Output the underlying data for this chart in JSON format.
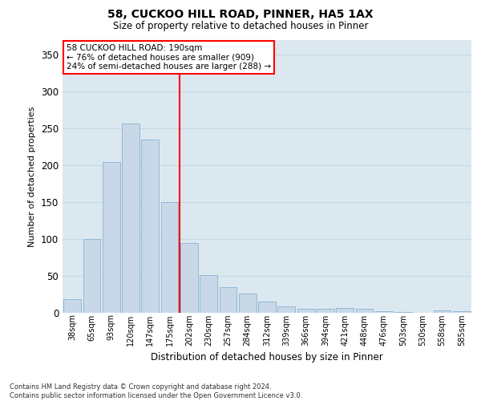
{
  "title1": "58, CUCKOO HILL ROAD, PINNER, HA5 1AX",
  "title2": "Size of property relative to detached houses in Pinner",
  "xlabel": "Distribution of detached houses by size in Pinner",
  "ylabel": "Number of detached properties",
  "bar_labels": [
    "38sqm",
    "65sqm",
    "93sqm",
    "120sqm",
    "147sqm",
    "175sqm",
    "202sqm",
    "230sqm",
    "257sqm",
    "284sqm",
    "312sqm",
    "339sqm",
    "366sqm",
    "394sqm",
    "421sqm",
    "448sqm",
    "476sqm",
    "503sqm",
    "530sqm",
    "558sqm",
    "585sqm"
  ],
  "bar_values": [
    18,
    100,
    205,
    257,
    235,
    150,
    95,
    51,
    35,
    26,
    15,
    9,
    5,
    5,
    6,
    5,
    2,
    1,
    0,
    3,
    2
  ],
  "bar_color": "#c8d8e8",
  "bar_edgecolor": "#7aabcc",
  "grid_color": "#c5d8e8",
  "vline_x": 5.5,
  "vline_color": "red",
  "annotation_text": "58 CUCKOO HILL ROAD: 190sqm\n← 76% of detached houses are smaller (909)\n24% of semi-detached houses are larger (288) →",
  "annotation_box_color": "white",
  "annotation_box_edgecolor": "red",
  "footnote": "Contains HM Land Registry data © Crown copyright and database right 2024.\nContains public sector information licensed under the Open Government Licence v3.0.",
  "ylim": [
    0,
    370
  ],
  "yticks": [
    0,
    50,
    100,
    150,
    200,
    250,
    300,
    350
  ],
  "background_color": "#dce8f0",
  "fig_background": "#ffffff"
}
